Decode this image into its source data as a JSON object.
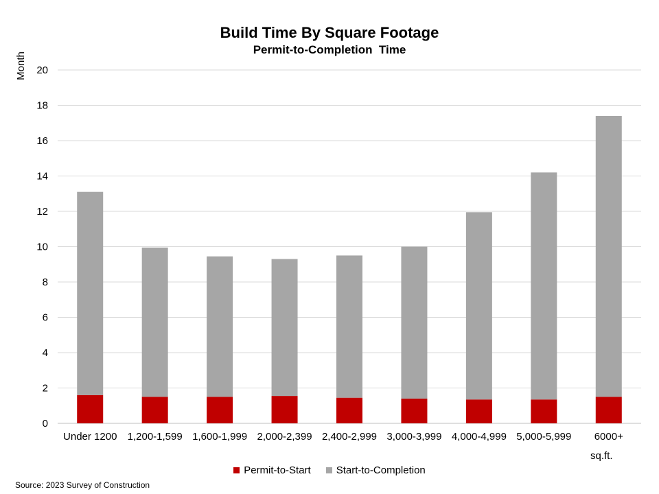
{
  "chart_data": {
    "type": "bar",
    "stacked": true,
    "title": "Build Time By Square Footage",
    "subtitle": "Permit-to-Completion  Time",
    "ylabel": "Month",
    "xlabel_unit": "sq.ft.",
    "ylim": [
      0,
      20
    ],
    "yticks": [
      0,
      2,
      4,
      6,
      8,
      10,
      12,
      14,
      16,
      18,
      20
    ],
    "grid": true,
    "legend_position": "bottom",
    "categories": [
      "Under 1200",
      "1,200-1,599",
      "1,600-1,999",
      "2,000-2,399",
      "2,400-2,999",
      "3,000-3,999",
      "4,000-4,999",
      "5,000-5,999",
      "6000+"
    ],
    "series": [
      {
        "name": "Permit-to-Start",
        "color": "#C00000",
        "values": [
          1.6,
          1.5,
          1.5,
          1.55,
          1.45,
          1.4,
          1.35,
          1.35,
          1.5
        ]
      },
      {
        "name": "Start-to-Completion",
        "color": "#A6A6A6",
        "values": [
          11.5,
          8.45,
          7.95,
          7.75,
          8.05,
          8.6,
          10.6,
          12.85,
          15.9
        ]
      }
    ],
    "source": "Source: 2023 Survey of Construction"
  }
}
